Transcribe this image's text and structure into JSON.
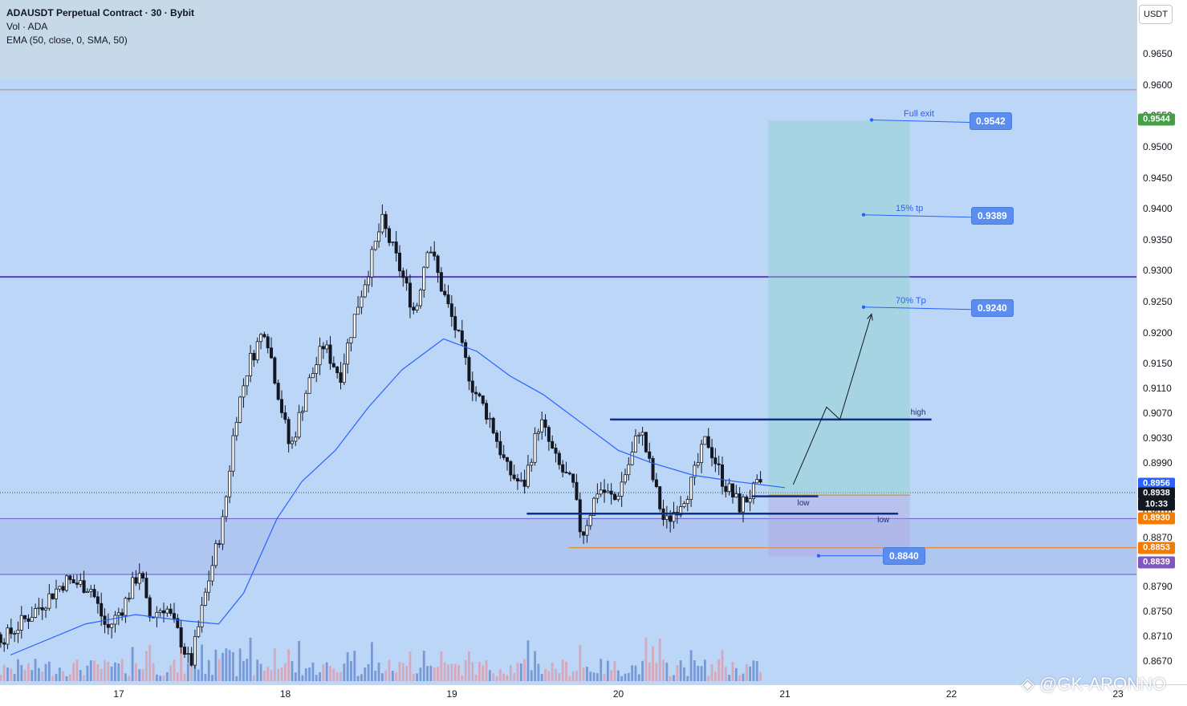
{
  "header": {
    "symbol": "ADAUSDT Perpetual Contract · 30 · Bybit",
    "volume": "Vol · ADA",
    "ema": "EMA (50, close, 0, SMA, 50)"
  },
  "currency": "USDT",
  "watermark": "@GK-ARONNO",
  "colors": {
    "up": "#26a69a",
    "down": "#ef5350",
    "candle_outline": "#131722",
    "ema": "#2962ff",
    "resistance": "#5b3fb8",
    "support_zone": "#7e57c2",
    "orange": "#f57c00",
    "target_zone": "#8fd3c7",
    "blue_pill": "#5b8def"
  },
  "chart_data": {
    "type": "candlestick",
    "ylim": [
      0.863,
      0.972
    ],
    "y_ticks": [
      "0.9650",
      "0.9600",
      "0.9550",
      "0.9500",
      "0.9450",
      "0.9400",
      "0.9350",
      "0.9300",
      "0.9250",
      "0.9200",
      "0.9150",
      "0.9110",
      "0.9070",
      "0.9030",
      "0.8990",
      "0.8950",
      "0.8910",
      "0.8870",
      "0.8830",
      "0.8790",
      "0.8750",
      "0.8710",
      "0.8670"
    ],
    "x_ticks": [
      "17",
      "18",
      "19",
      "20",
      "21",
      "22",
      "23"
    ],
    "series_path": [
      {
        "day": 16.35,
        "price": 0.871
      },
      {
        "day": 16.55,
        "price": 0.876
      },
      {
        "day": 16.7,
        "price": 0.88
      },
      {
        "day": 16.85,
        "price": 0.879
      },
      {
        "day": 16.95,
        "price": 0.872
      },
      {
        "day": 17.05,
        "price": 0.876
      },
      {
        "day": 17.15,
        "price": 0.882
      },
      {
        "day": 17.2,
        "price": 0.874
      },
      {
        "day": 17.3,
        "price": 0.876
      },
      {
        "day": 17.4,
        "price": 0.87
      },
      {
        "day": 17.45,
        "price": 0.866
      },
      {
        "day": 17.55,
        "price": 0.879
      },
      {
        "day": 17.65,
        "price": 0.89
      },
      {
        "day": 17.72,
        "price": 0.906
      },
      {
        "day": 17.8,
        "price": 0.915
      },
      {
        "day": 17.9,
        "price": 0.921
      },
      {
        "day": 17.95,
        "price": 0.914
      },
      {
        "day": 18.05,
        "price": 0.901
      },
      {
        "day": 18.15,
        "price": 0.911
      },
      {
        "day": 18.25,
        "price": 0.918
      },
      {
        "day": 18.35,
        "price": 0.913
      },
      {
        "day": 18.45,
        "price": 0.924
      },
      {
        "day": 18.55,
        "price": 0.933
      },
      {
        "day": 18.6,
        "price": 0.938
      },
      {
        "day": 18.7,
        "price": 0.931
      },
      {
        "day": 18.8,
        "price": 0.923
      },
      {
        "day": 18.88,
        "price": 0.935
      },
      {
        "day": 18.95,
        "price": 0.928
      },
      {
        "day": 19.05,
        "price": 0.92
      },
      {
        "day": 19.15,
        "price": 0.911
      },
      {
        "day": 19.25,
        "price": 0.906
      },
      {
        "day": 19.35,
        "price": 0.898
      },
      {
        "day": 19.45,
        "price": 0.895
      },
      {
        "day": 19.55,
        "price": 0.906
      },
      {
        "day": 19.65,
        "price": 0.899
      },
      {
        "day": 19.75,
        "price": 0.895
      },
      {
        "day": 19.8,
        "price": 0.887
      },
      {
        "day": 19.9,
        "price": 0.895
      },
      {
        "day": 20.0,
        "price": 0.893
      },
      {
        "day": 20.1,
        "price": 0.9
      },
      {
        "day": 20.15,
        "price": 0.905
      },
      {
        "day": 20.25,
        "price": 0.894
      },
      {
        "day": 20.3,
        "price": 0.889
      },
      {
        "day": 20.45,
        "price": 0.895
      },
      {
        "day": 20.55,
        "price": 0.903
      },
      {
        "day": 20.65,
        "price": 0.896
      },
      {
        "day": 20.75,
        "price": 0.892
      },
      {
        "day": 20.85,
        "price": 0.895
      },
      {
        "day": 20.95,
        "price": 0.894
      },
      {
        "day": 21.0,
        "price": 0.895
      }
    ],
    "ema_path": [
      {
        "day": 16.35,
        "price": 0.868
      },
      {
        "day": 16.8,
        "price": 0.873
      },
      {
        "day": 17.1,
        "price": 0.8745
      },
      {
        "day": 17.4,
        "price": 0.8735
      },
      {
        "day": 17.6,
        "price": 0.873
      },
      {
        "day": 17.75,
        "price": 0.878
      },
      {
        "day": 17.95,
        "price": 0.89
      },
      {
        "day": 18.1,
        "price": 0.896
      },
      {
        "day": 18.3,
        "price": 0.901
      },
      {
        "day": 18.5,
        "price": 0.908
      },
      {
        "day": 18.7,
        "price": 0.914
      },
      {
        "day": 18.85,
        "price": 0.917
      },
      {
        "day": 18.95,
        "price": 0.919
      },
      {
        "day": 19.15,
        "price": 0.917
      },
      {
        "day": 19.35,
        "price": 0.913
      },
      {
        "day": 19.55,
        "price": 0.91
      },
      {
        "day": 19.8,
        "price": 0.905
      },
      {
        "day": 20.0,
        "price": 0.901
      },
      {
        "day": 20.2,
        "price": 0.899
      },
      {
        "day": 20.45,
        "price": 0.897
      },
      {
        "day": 20.7,
        "price": 0.896
      },
      {
        "day": 21.0,
        "price": 0.895
      }
    ],
    "forecast_path": [
      {
        "day": 21.05,
        "price": 0.8955
      },
      {
        "day": 21.25,
        "price": 0.908
      },
      {
        "day": 21.33,
        "price": 0.906
      },
      {
        "day": 21.52,
        "price": 0.923
      }
    ],
    "levels": {
      "top_line": 0.9592,
      "resistance_line": 0.929,
      "support_zone_top": 0.89,
      "support_zone_bottom": 0.881,
      "orange_line": 0.8853,
      "dotted_current": 0.8942
    },
    "target_zone": {
      "day_start": 20.9,
      "day_end": 21.75,
      "top": 0.9542,
      "entry": 0.8938,
      "stop": 0.8839
    },
    "range_lines": [
      {
        "label": "high",
        "day_start": 19.95,
        "day_end": 21.88,
        "price": 0.906
      },
      {
        "label": "low",
        "day_start": 20.8,
        "day_end": 21.2,
        "price": 0.8936
      },
      {
        "label": "low",
        "day_start": 19.45,
        "day_end": 21.68,
        "price": 0.8908
      }
    ],
    "targets": [
      {
        "label": "Full exit",
        "price": 0.9542,
        "display": "0.9542"
      },
      {
        "label": "15% tp",
        "price": 0.9389,
        "display": "0.9389"
      },
      {
        "label": "70% Tp",
        "price": 0.924,
        "display": "0.9240"
      },
      {
        "label": "",
        "price": 0.884,
        "display": "0.8840"
      }
    ],
    "price_badges": [
      {
        "text": "0.9544",
        "price": 0.9544,
        "color": "#43a047"
      },
      {
        "text": "0.8956",
        "price": 0.8956,
        "color": "#2962ff"
      },
      {
        "text": "0.8938",
        "price": 0.8941,
        "color": "#131722"
      },
      {
        "text": "10:33",
        "price": 0.8922,
        "color": "#131722"
      },
      {
        "text": "0.8930",
        "price": 0.89,
        "color": "#f57c00"
      },
      {
        "text": "0.8853",
        "price": 0.8853,
        "color": "#f57c00"
      },
      {
        "text": "0.8839",
        "price": 0.883,
        "color": "#7e57c2"
      }
    ]
  }
}
